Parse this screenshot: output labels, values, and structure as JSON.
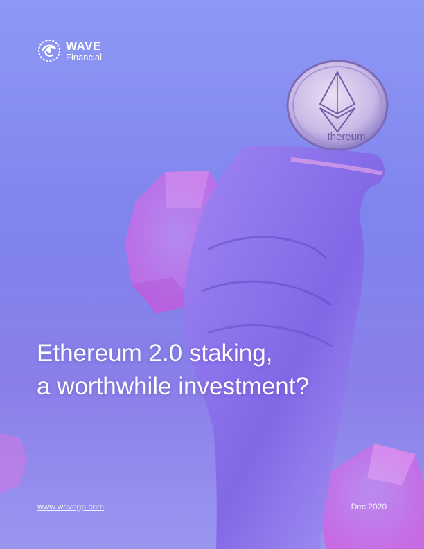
{
  "brand": {
    "name": "WAVE",
    "sub": "Financial"
  },
  "cover": {
    "title_line1": "Ethereum 2.0 staking,",
    "title_line2": "a worthwhile investment?",
    "coin_text": "thereum"
  },
  "footer": {
    "website": "www.wavegp.com",
    "date": "Dec 2020"
  },
  "colors": {
    "accent_pink": "#e06be0",
    "background": "#8a8ff0"
  }
}
